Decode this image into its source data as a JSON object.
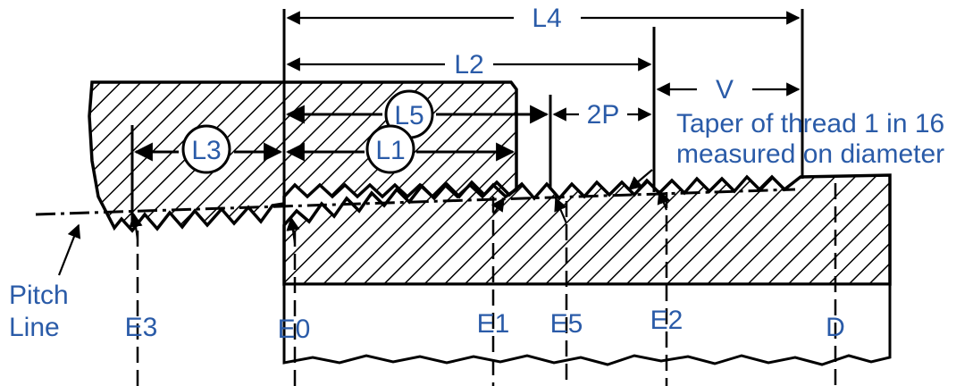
{
  "labels": {
    "l4": "L4",
    "l2": "L2",
    "l5": "L5",
    "l1": "L1",
    "l3": "L3",
    "two_p": "2P",
    "v": "V",
    "taper_line1": "Taper of thread 1 in 16",
    "taper_line2": "measured on diameter",
    "pitch_line1": "Pitch",
    "pitch_line2": "Line",
    "e3": "E3",
    "e0": "E0",
    "e1": "E1",
    "e5": "E5",
    "e2": "E2",
    "d": "D"
  },
  "colors": {
    "label": "#2a5ba8",
    "line": "#000000",
    "background": "#ffffff"
  }
}
